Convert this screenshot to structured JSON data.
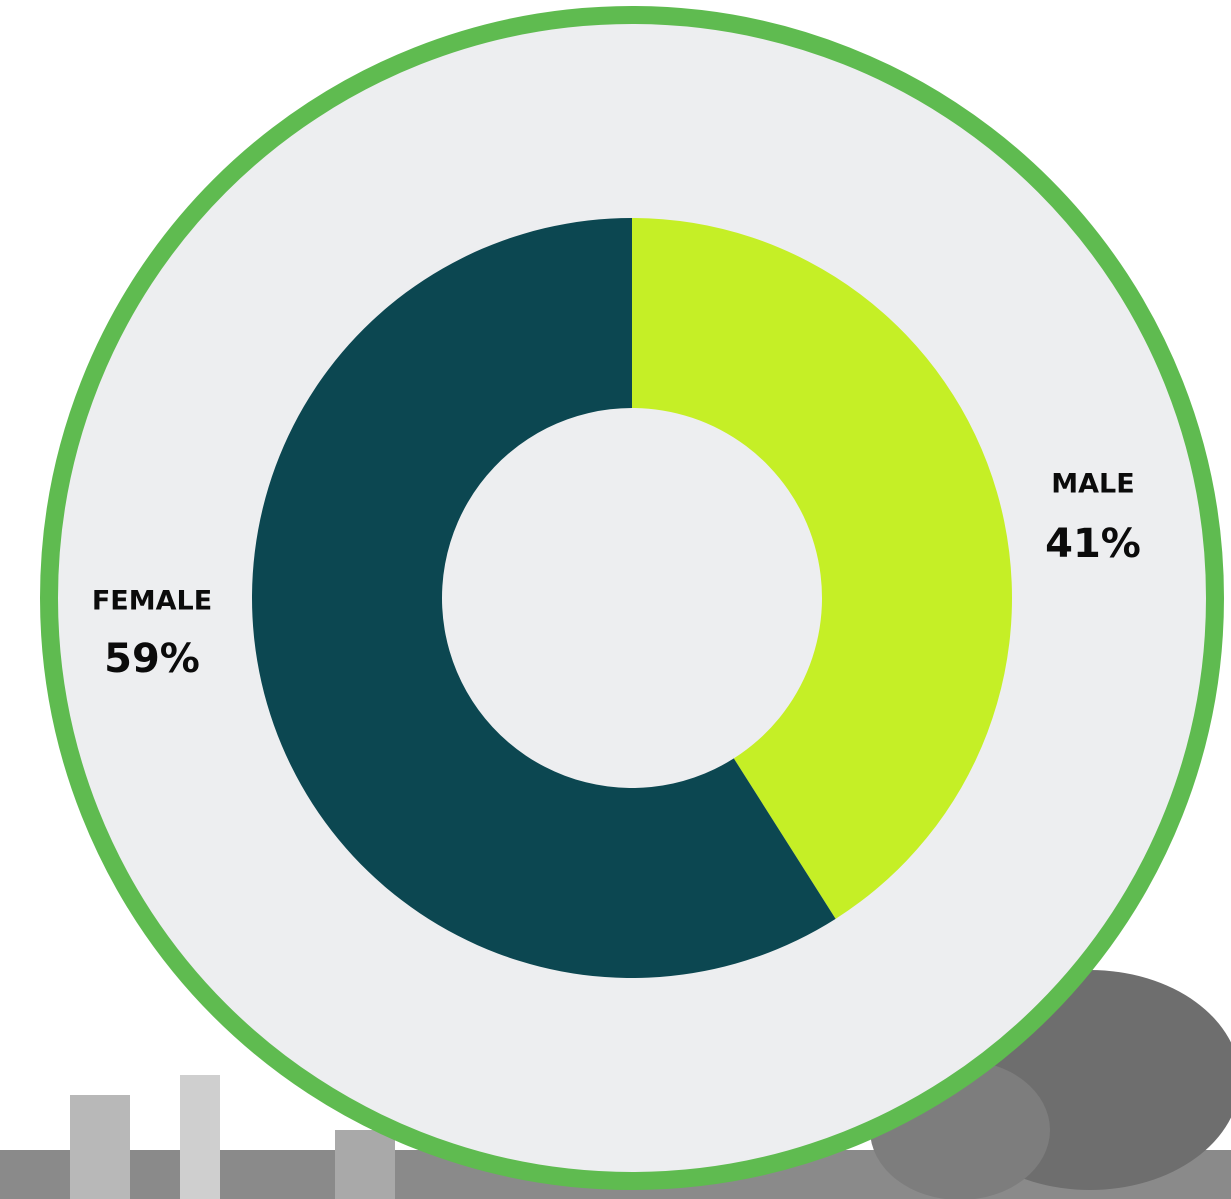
{
  "chart_data": {
    "type": "donut",
    "categories": [
      "MALE",
      "FEMALE"
    ],
    "values": [
      41,
      59
    ],
    "value_labels": [
      "41%",
      "59%"
    ],
    "colors": [
      "#c5ef26",
      "#0c4751"
    ]
  }
}
